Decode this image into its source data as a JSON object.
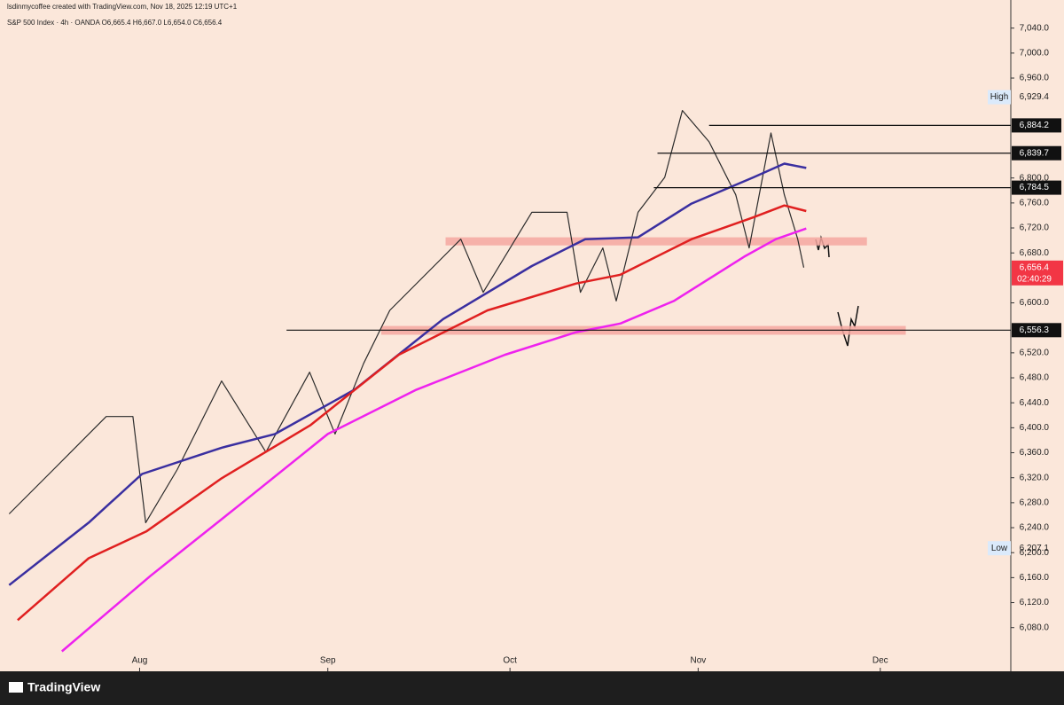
{
  "chart_data": {
    "type": "line",
    "title": "lsdinmycoffee created with TradingView.com, Nov 18, 2025 12:19 UTC+1",
    "subtitle": "S&P 500 Index · 4h · OANDA  O6,665.4  H6,667.0  L6,654.0  C6,656.4",
    "brand": "TradingView",
    "xlim": [
      8,
      174.5
    ],
    "xticks": [
      {
        "value": 31,
        "label": "Aug"
      },
      {
        "value": 62,
        "label": "Sep"
      },
      {
        "value": 92,
        "label": "Oct"
      },
      {
        "value": 123,
        "label": "Nov"
      },
      {
        "value": 153,
        "label": "Dec"
      }
    ],
    "ylim": [
      6010,
      7085
    ],
    "yticks": [
      {
        "value": 6080,
        "label": "6,080.0"
      },
      {
        "value": 6120,
        "label": "6,120.0"
      },
      {
        "value": 6160,
        "label": "6,160.0"
      },
      {
        "value": 6200,
        "label": "6,200.0"
      },
      {
        "value": 6240,
        "label": "6,240.0"
      },
      {
        "value": 6280,
        "label": "6,280.0"
      },
      {
        "value": 6320,
        "label": "6,320.0"
      },
      {
        "value": 6360,
        "label": "6,360.0"
      },
      {
        "value": 6400,
        "label": "6,400.0"
      },
      {
        "value": 6440,
        "label": "6,440.0"
      },
      {
        "value": 6480,
        "label": "6,480.0"
      },
      {
        "value": 6520,
        "label": "6,520.0"
      },
      {
        "value": 6600,
        "label": "6,600.0"
      },
      {
        "value": 6680,
        "label": "6,680.0"
      },
      {
        "value": 6720,
        "label": "6,720.0"
      },
      {
        "value": 6760,
        "label": "6,760.0"
      },
      {
        "value": 6800,
        "label": "6,800.0"
      },
      {
        "value": 6960,
        "label": "6,960.0"
      },
      {
        "value": 7000,
        "label": "7,000.0"
      },
      {
        "value": 7040,
        "label": "7,040.0"
      }
    ],
    "series": [
      {
        "color": "#2b2b2b",
        "x": [
          9.5,
          16.8,
          25.5,
          29.9,
          32,
          37.2,
          44.5,
          51.8,
          59,
          63.2,
          67.9,
          72.2,
          79.5,
          83.9,
          87.6,
          95.6,
          101.4,
          103.6,
          107.3,
          109.5,
          113.1,
          117.5,
          120.4,
          124.8,
          129.2,
          131.4,
          135,
          137.2,
          139.4,
          140.4
        ],
        "values": [
          6262,
          6333,
          6418,
          6418,
          6248,
          6333,
          6475,
          6361,
          6489,
          6390,
          6503,
          6588,
          6659,
          6702,
          6617,
          6745,
          6745,
          6617,
          6688,
          6603,
          6745,
          6801,
          6908,
          6858,
          6773,
          6688,
          6872,
          6773,
          6702,
          6656.4
        ]
      },
      {
        "color": "#3a2fa0",
        "x": [
          9.5,
          22.6,
          31.4,
          44.5,
          53.3,
          66.4,
          81,
          95.6,
          104.4,
          113.1,
          121.9,
          132.1,
          137.2,
          140.8
        ],
        "values": [
          6148,
          6248,
          6326,
          6368,
          6390,
          6461,
          6574,
          6659,
          6702,
          6705,
          6759,
          6801,
          6823,
          6816
        ]
      },
      {
        "color": "#e02020",
        "x": [
          10.9,
          22.6,
          32.1,
          44.5,
          59.1,
          73.7,
          88.3,
          102.9,
          110.2,
          121.9,
          132.1,
          137.2,
          140.8
        ],
        "values": [
          6092,
          6191,
          6234,
          6319,
          6404,
          6517,
          6588,
          6631,
          6645,
          6702,
          6737,
          6756,
          6747
        ]
      },
      {
        "color": "#ee22ee",
        "x": [
          18.2,
          32.8,
          47.4,
          62,
          76.6,
          91.2,
          102.9,
          110.2,
          119,
          130.6,
          135.8,
          140.8
        ],
        "values": [
          6042,
          6163,
          6276,
          6390,
          6461,
          6517,
          6553,
          6567,
          6603,
          6674,
          6702,
          6719
        ]
      }
    ],
    "zones": [
      {
        "x": [
          81.4,
          150.8
        ],
        "from": 6692,
        "to": 6705,
        "color": "#f4a7a0"
      },
      {
        "x": [
          70.8,
          157.2
        ],
        "from": 6549,
        "to": 6563,
        "color": "#f4a7a0"
      }
    ],
    "levels": [
      {
        "value": 6884.2,
        "value_label": "6,884.2",
        "x": 124.8
      },
      {
        "value": 6839.7,
        "value_label": "6,839.7",
        "x": 116.3
      },
      {
        "value": 6784.5,
        "value_label": "6,784.5",
        "x": 115.7
      },
      {
        "value": 6556.3,
        "value_label": "6,556.3",
        "x": 55.2
      }
    ],
    "high": {
      "name": "High",
      "value": 6929.4,
      "value_label": "6,929.4"
    },
    "low": {
      "name": "Low",
      "value": 6207.1,
      "value_label": "6,207.1"
    },
    "last": {
      "value": 6656.4,
      "value_label": "6,656.4",
      "countdown": "02:40:29",
      "color": "#f23645"
    }
  }
}
